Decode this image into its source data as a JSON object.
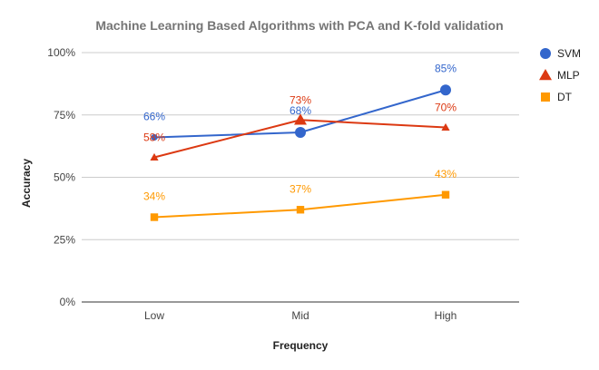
{
  "chart_data": {
    "type": "line",
    "title": "Machine Learning Based Algorithms with PCA and K-fold validation",
    "xlabel": "Frequency",
    "ylabel": "Accuracy",
    "categories": [
      "Low",
      "Mid",
      "High"
    ],
    "ylim": [
      0,
      100
    ],
    "yticks": [
      "0%",
      "25%",
      "50%",
      "75%",
      "100%"
    ],
    "grid": true,
    "legend": "right",
    "series": [
      {
        "name": "SVM",
        "values": [
          66,
          68,
          85
        ],
        "labels": [
          "66%",
          "68%",
          "85%"
        ],
        "color": "#3366cc",
        "marker": "circle"
      },
      {
        "name": "MLP",
        "values": [
          58,
          73,
          70
        ],
        "labels": [
          "58%",
          "73%",
          "70%"
        ],
        "color": "#dc3912",
        "marker": "triangle"
      },
      {
        "name": "DT",
        "values": [
          34,
          37,
          43
        ],
        "labels": [
          "34%",
          "37%",
          "43%"
        ],
        "color": "#ff9900",
        "marker": "square"
      }
    ]
  }
}
